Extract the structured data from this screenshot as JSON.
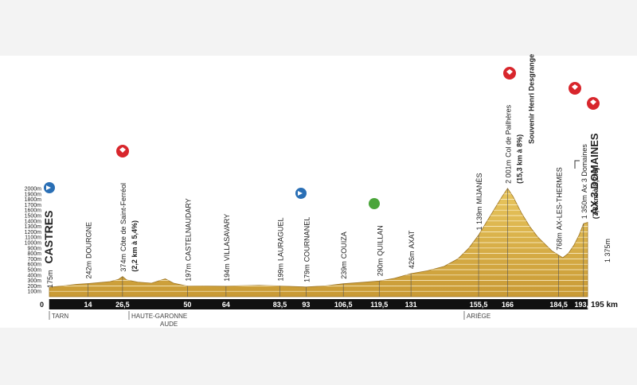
{
  "chart_data": {
    "type": "area",
    "x": [
      0,
      5,
      10,
      14,
      18,
      22,
      25,
      26.5,
      28,
      32,
      37,
      40,
      42,
      45,
      50,
      55,
      60,
      64,
      70,
      76,
      80,
      83.5,
      88,
      93,
      100,
      106.5,
      112,
      119.5,
      125,
      131,
      137,
      143,
      148,
      152,
      155.5,
      158,
      161,
      164,
      166,
      168,
      171,
      174,
      177,
      180,
      182,
      184.5,
      186,
      188,
      190,
      192,
      193.5,
      195
    ],
    "values": [
      175,
      200,
      230,
      242,
      260,
      280,
      320,
      374,
      310,
      270,
      250,
      300,
      330,
      250,
      197,
      200,
      195,
      194,
      205,
      210,
      205,
      199,
      190,
      179,
      200,
      239,
      260,
      290,
      340,
      426,
      480,
      560,
      700,
      900,
      1139,
      1350,
      1600,
      1850,
      2001,
      1850,
      1550,
      1300,
      1100,
      950,
      850,
      768,
      720,
      800,
      950,
      1150,
      1350,
      1375
    ],
    "color": "#d9b24a",
    "xlim": [
      0,
      195
    ],
    "xticks": [
      0,
      14,
      {
        "value": 26.5,
        "label": "26,5"
      },
      50,
      64,
      {
        "value": 83.5,
        "label": "83,5"
      },
      93,
      {
        "value": 106.5,
        "label": "106,5"
      },
      {
        "value": 119.5,
        "label": "119,5"
      },
      131,
      {
        "value": 155.5,
        "label": "155,5"
      },
      166,
      {
        "value": 184.5,
        "label": "184,5"
      },
      {
        "value": 193.5,
        "label": "193,5"
      },
      {
        "value": 195,
        "label": "195 km"
      }
    ],
    "ylim": [
      0,
      2000
    ],
    "yticks": [
      {
        "value": 100,
        "label": "100m"
      },
      {
        "value": 200,
        "label": "200m"
      },
      {
        "value": 300,
        "label": "300m"
      },
      {
        "value": 400,
        "label": "400m"
      },
      {
        "value": 500,
        "label": "500m"
      },
      {
        "value": 600,
        "label": "600m"
      },
      {
        "value": 700,
        "label": "700m"
      },
      {
        "value": 800,
        "label": "800m"
      },
      {
        "value": 900,
        "label": "900m"
      },
      {
        "value": 1000,
        "label": "1000m"
      },
      {
        "value": 1100,
        "label": "1100m"
      },
      {
        "value": 1200,
        "label": "1200m"
      },
      {
        "value": 1300,
        "label": "1300m"
      },
      {
        "value": 1400,
        "label": "1400m"
      },
      {
        "value": 1500,
        "label": "1500m"
      },
      {
        "value": 1600,
        "label": "1600m"
      },
      {
        "value": 1700,
        "label": "1700m"
      },
      {
        "value": 1800,
        "label": "1800m"
      },
      {
        "value": 1900,
        "label": "1900m"
      },
      {
        "value": 2000,
        "label": "2000m"
      }
    ],
    "grid": true,
    "waypoints": [
      {
        "alt": "175m",
        "name": "CASTRES"
      },
      {
        "alt": "242m",
        "name": "DOURGNE"
      },
      {
        "alt": "374m",
        "name": "Côte de Saint-Ferréol",
        "extra": [
          "(2,2 km à 5,4%)"
        ]
      },
      {
        "alt": "197m",
        "name": "CASTELNAUDARY"
      },
      {
        "alt": "194m",
        "name": "VILLASAVARY"
      },
      {
        "alt": "199m",
        "name": "LAURAGUEL"
      },
      {
        "alt": "179m",
        "name": "COURNANEL"
      },
      {
        "alt": "239m",
        "name": "COUIZA"
      },
      {
        "alt": "290m",
        "name": "QUILLAN"
      },
      {
        "alt": "426m",
        "name": "AXAT"
      },
      {
        "alt": "1 139m",
        "name": "MIJANÈS"
      },
      {
        "alt": "2 001m",
        "name": "Col de Pailhères",
        "extra": [
          "(15,3 km à 8%)",
          "Souvenir Henri Desgrange"
        ]
      },
      {
        "alt": "768m",
        "name": "AX-LES-THERMES"
      },
      {
        "alt": "1 350m",
        "name": "Ax 3 Domaines",
        "extra": [
          "(7,8 km à 8,2%)"
        ]
      },
      {
        "alt": "1 375m",
        "name": "AX 3 DOMAINES"
      }
    ],
    "regions": [
      "TARN",
      "HAUTE-GARONNE",
      "AUDE",
      "ARIÈGE"
    ]
  }
}
